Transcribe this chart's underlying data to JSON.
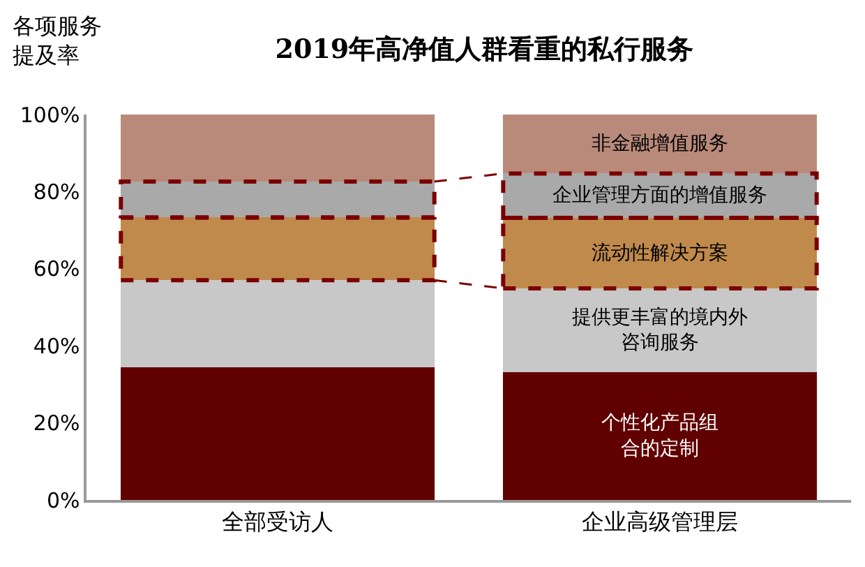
{
  "chart_data": {
    "type": "bar",
    "title": "2019年高净值人群看重的私行服务",
    "ylabel": "各项服务提及率",
    "stacked": true,
    "legend": false,
    "categories": [
      "全部受访人",
      "企业高级管理层"
    ],
    "series": [
      {
        "name": "个性化产品组合的定制",
        "color": "#600000",
        "values": [
          34.5,
          33.2
        ]
      },
      {
        "name": "提供更丰富的境内外咨询服务",
        "color": "#c8c8c8",
        "values": [
          22.5,
          21.7
        ]
      },
      {
        "name": "流动性解决方案",
        "color": "#c08a4c",
        "values": [
          16.3,
          18.3
        ]
      },
      {
        "name": "企业管理方面的增值服务",
        "color": "#a9a9a9",
        "values": [
          9.3,
          11.5
        ]
      },
      {
        "name": "非金融增值服务",
        "color": "#b98a7a",
        "values": [
          17.4,
          15.3
        ]
      }
    ],
    "ylim": [
      0,
      100
    ],
    "yticks": [
      {
        "value": 0,
        "label": "0%"
      },
      {
        "value": 20,
        "label": "20%"
      },
      {
        "value": 40,
        "label": "40%"
      },
      {
        "value": 60,
        "label": "60%"
      },
      {
        "value": 80,
        "label": "80%"
      },
      {
        "value": 100,
        "label": "100%"
      }
    ]
  }
}
